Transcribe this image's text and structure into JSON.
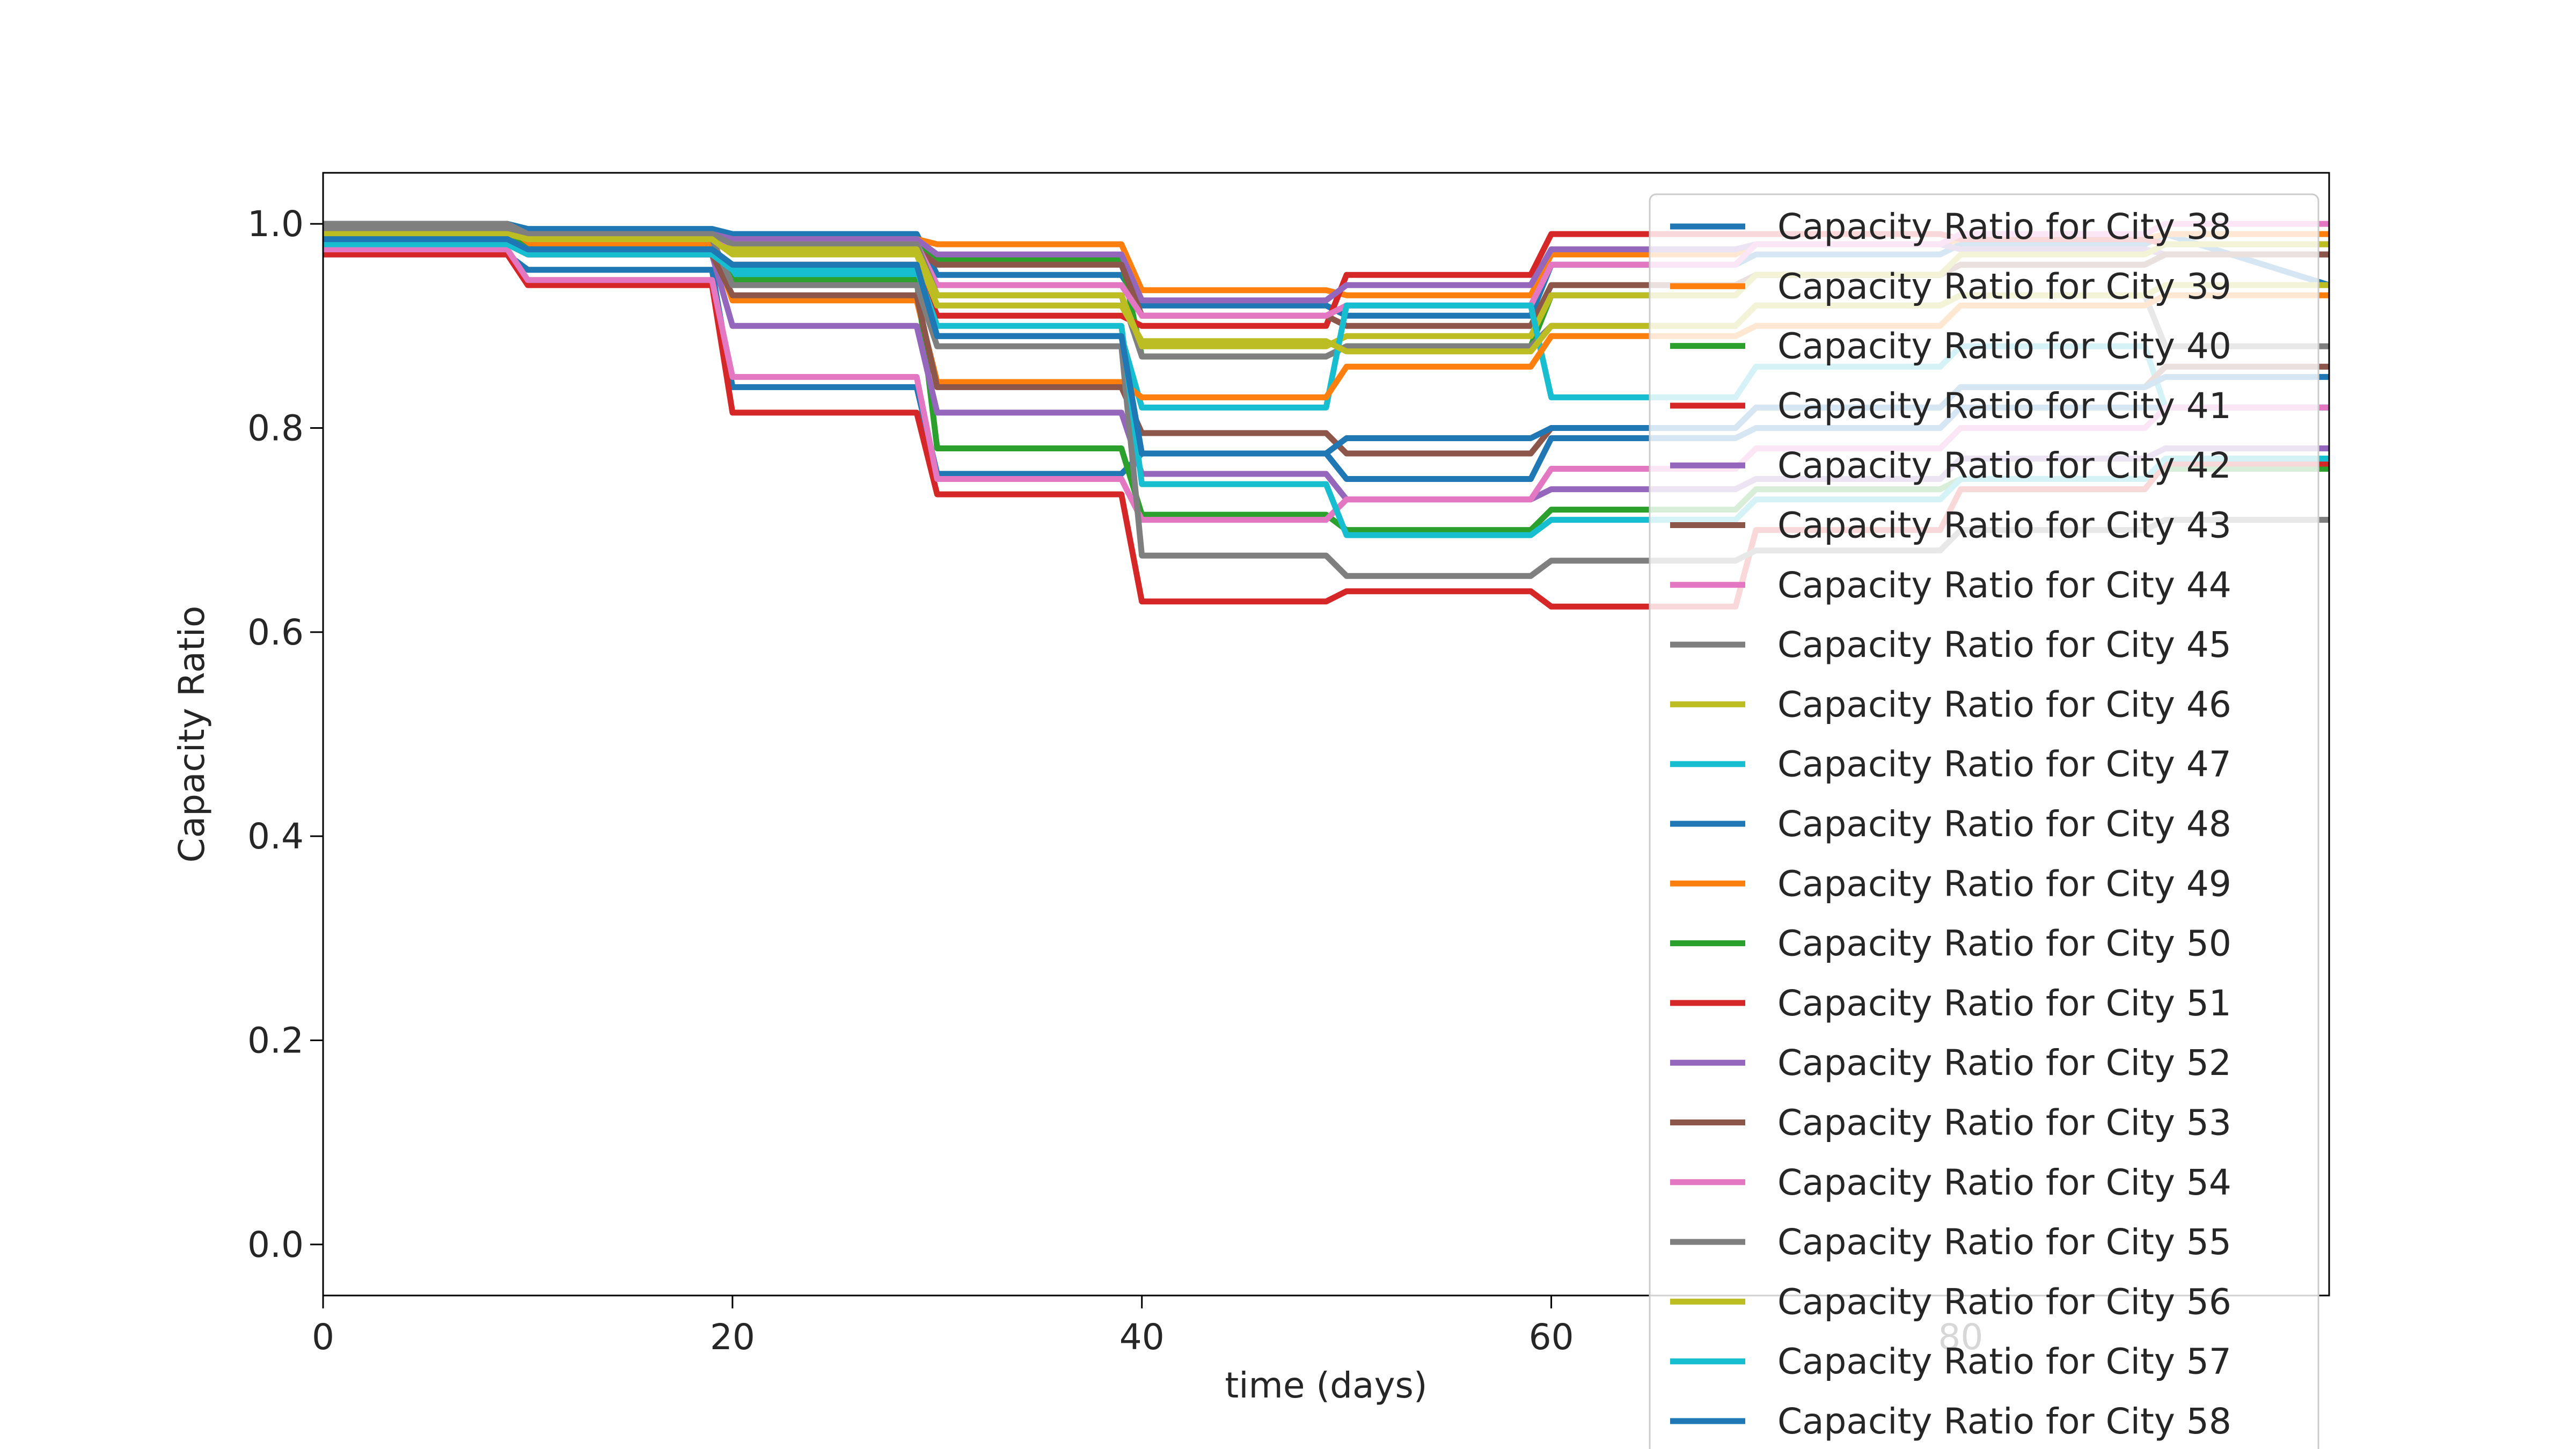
{
  "chart_data": {
    "type": "line",
    "title": "",
    "xlabel": "time (days)",
    "ylabel": "Capacity Ratio",
    "xlim": [
      0,
      98
    ],
    "ylim": [
      -0.05,
      1.05
    ],
    "x_ticks": [
      0,
      20,
      40,
      60,
      80
    ],
    "x_tick_labels": [
      "0",
      "20",
      "40",
      "60",
      "80"
    ],
    "y_ticks": [
      0.0,
      0.2,
      0.4,
      0.6,
      0.8,
      1.0
    ],
    "y_tick_labels": [
      "0.0",
      "0.2",
      "0.4",
      "0.6",
      "0.8",
      "1.0"
    ],
    "grid": false,
    "legend_position": "right",
    "step_times": [
      0,
      9,
      10,
      19,
      20,
      29,
      30,
      39,
      40,
      49,
      50,
      59,
      60,
      69,
      70,
      79,
      80,
      89,
      90,
      98
    ],
    "series": [
      {
        "name": "Capacity Ratio for City 38",
        "color": "#1f77b4",
        "values": [
          1.0,
          1.0,
          0.995,
          0.995,
          0.99,
          0.99,
          0.95,
          0.95,
          0.92,
          0.92,
          0.91,
          0.91,
          0.96,
          0.96,
          0.97,
          0.97,
          0.98,
          0.98,
          0.99,
          0.94
        ]
      },
      {
        "name": "Capacity Ratio for City 39",
        "color": "#ff7f0e",
        "values": [
          0.995,
          0.995,
          0.99,
          0.99,
          0.985,
          0.985,
          0.98,
          0.98,
          0.935,
          0.935,
          0.93,
          0.93,
          0.97,
          0.97,
          0.98,
          0.98,
          0.985,
          0.985,
          0.99,
          0.99
        ]
      },
      {
        "name": "Capacity Ratio for City 40",
        "color": "#2ca02c",
        "values": [
          0.99,
          0.99,
          0.985,
          0.985,
          0.98,
          0.98,
          0.965,
          0.965,
          0.87,
          0.87,
          0.88,
          0.88,
          0.93,
          0.93,
          0.95,
          0.95,
          0.96,
          0.96,
          0.97,
          0.97
        ]
      },
      {
        "name": "Capacity Ratio for City 41",
        "color": "#d62728",
        "values": [
          0.98,
          0.98,
          0.97,
          0.97,
          0.96,
          0.96,
          0.91,
          0.91,
          0.9,
          0.9,
          0.95,
          0.95,
          0.99,
          0.99,
          0.99,
          0.99,
          0.985,
          0.985,
          0.98,
          0.98
        ]
      },
      {
        "name": "Capacity Ratio for City 42",
        "color": "#9467bd",
        "values": [
          0.995,
          0.995,
          0.99,
          0.99,
          0.985,
          0.985,
          0.97,
          0.97,
          0.925,
          0.925,
          0.94,
          0.94,
          0.975,
          0.975,
          0.98,
          0.98,
          0.975,
          0.975,
          0.97,
          0.97
        ]
      },
      {
        "name": "Capacity Ratio for City 43",
        "color": "#8c564b",
        "values": [
          0.985,
          0.985,
          0.98,
          0.98,
          0.975,
          0.975,
          0.96,
          0.96,
          0.91,
          0.91,
          0.9,
          0.9,
          0.94,
          0.94,
          0.95,
          0.95,
          0.96,
          0.96,
          0.97,
          0.97
        ]
      },
      {
        "name": "Capacity Ratio for City 44",
        "color": "#e377c2",
        "values": [
          0.99,
          0.99,
          0.985,
          0.985,
          0.98,
          0.98,
          0.94,
          0.94,
          0.91,
          0.91,
          0.92,
          0.92,
          0.96,
          0.96,
          0.98,
          0.98,
          0.99,
          0.99,
          1.0,
          1.0
        ]
      },
      {
        "name": "Capacity Ratio for City 45",
        "color": "#7f7f7f",
        "values": [
          1.0,
          1.0,
          0.99,
          0.99,
          0.98,
          0.98,
          0.93,
          0.93,
          0.87,
          0.87,
          0.88,
          0.88,
          0.9,
          0.9,
          0.92,
          0.92,
          0.93,
          0.93,
          0.88,
          0.88
        ]
      },
      {
        "name": "Capacity Ratio for City 46",
        "color": "#bcbd22",
        "values": [
          0.985,
          0.985,
          0.98,
          0.98,
          0.975,
          0.975,
          0.93,
          0.93,
          0.88,
          0.88,
          0.89,
          0.89,
          0.93,
          0.93,
          0.95,
          0.95,
          0.97,
          0.97,
          0.98,
          0.98
        ]
      },
      {
        "name": "Capacity Ratio for City 47",
        "color": "#17becf",
        "values": [
          0.98,
          0.98,
          0.975,
          0.975,
          0.95,
          0.95,
          0.89,
          0.89,
          0.82,
          0.82,
          0.92,
          0.92,
          0.83,
          0.83,
          0.86,
          0.86,
          0.88,
          0.88,
          0.82,
          0.82
        ]
      },
      {
        "name": "Capacity Ratio for City 48",
        "color": "#1f77b4",
        "values": [
          0.97,
          0.97,
          0.955,
          0.955,
          0.84,
          0.84,
          0.755,
          0.755,
          0.775,
          0.775,
          0.75,
          0.75,
          0.79,
          0.79,
          0.8,
          0.8,
          0.82,
          0.82,
          0.82,
          0.82
        ]
      },
      {
        "name": "Capacity Ratio for City 49",
        "color": "#ff7f0e",
        "values": [
          0.99,
          0.99,
          0.98,
          0.98,
          0.925,
          0.925,
          0.845,
          0.845,
          0.83,
          0.83,
          0.86,
          0.86,
          0.89,
          0.89,
          0.9,
          0.9,
          0.92,
          0.92,
          0.93,
          0.93
        ]
      },
      {
        "name": "Capacity Ratio for City 50",
        "color": "#2ca02c",
        "values": [
          0.99,
          0.99,
          0.975,
          0.975,
          0.945,
          0.945,
          0.78,
          0.78,
          0.715,
          0.715,
          0.7,
          0.7,
          0.72,
          0.72,
          0.74,
          0.74,
          0.75,
          0.75,
          0.76,
          0.76
        ]
      },
      {
        "name": "Capacity Ratio for City 51",
        "color": "#d62728",
        "values": [
          0.97,
          0.97,
          0.94,
          0.94,
          0.815,
          0.815,
          0.735,
          0.735,
          0.63,
          0.63,
          0.64,
          0.64,
          0.625,
          0.625,
          0.7,
          0.7,
          0.74,
          0.74,
          0.765,
          0.765
        ]
      },
      {
        "name": "Capacity Ratio for City 52",
        "color": "#9467bd",
        "values": [
          0.98,
          0.98,
          0.97,
          0.97,
          0.9,
          0.9,
          0.815,
          0.815,
          0.755,
          0.755,
          0.73,
          0.73,
          0.74,
          0.74,
          0.75,
          0.75,
          0.77,
          0.77,
          0.78,
          0.78
        ]
      },
      {
        "name": "Capacity Ratio for City 53",
        "color": "#8c564b",
        "values": [
          0.985,
          0.985,
          0.97,
          0.97,
          0.93,
          0.93,
          0.84,
          0.84,
          0.795,
          0.795,
          0.775,
          0.775,
          0.8,
          0.8,
          0.82,
          0.82,
          0.84,
          0.84,
          0.86,
          0.86
        ]
      },
      {
        "name": "Capacity Ratio for City 54",
        "color": "#e377c2",
        "values": [
          0.975,
          0.975,
          0.945,
          0.945,
          0.85,
          0.85,
          0.75,
          0.75,
          0.71,
          0.71,
          0.73,
          0.73,
          0.76,
          0.76,
          0.78,
          0.78,
          0.8,
          0.8,
          0.82,
          0.82
        ]
      },
      {
        "name": "Capacity Ratio for City 55",
        "color": "#7f7f7f",
        "values": [
          0.995,
          0.995,
          0.985,
          0.985,
          0.94,
          0.94,
          0.88,
          0.88,
          0.675,
          0.675,
          0.655,
          0.655,
          0.67,
          0.67,
          0.68,
          0.68,
          0.7,
          0.7,
          0.71,
          0.71
        ]
      },
      {
        "name": "Capacity Ratio for City 56",
        "color": "#bcbd22",
        "values": [
          0.99,
          0.99,
          0.985,
          0.985,
          0.97,
          0.97,
          0.92,
          0.92,
          0.885,
          0.885,
          0.875,
          0.875,
          0.9,
          0.9,
          0.92,
          0.92,
          0.93,
          0.93,
          0.94,
          0.94
        ]
      },
      {
        "name": "Capacity Ratio for City 57",
        "color": "#17becf",
        "values": [
          0.98,
          0.98,
          0.97,
          0.97,
          0.955,
          0.955,
          0.9,
          0.9,
          0.745,
          0.745,
          0.695,
          0.695,
          0.71,
          0.71,
          0.73,
          0.73,
          0.75,
          0.75,
          0.77,
          0.77
        ]
      },
      {
        "name": "Capacity Ratio for City 58",
        "color": "#1f77b4",
        "values": [
          0.985,
          0.985,
          0.975,
          0.975,
          0.96,
          0.96,
          0.89,
          0.89,
          0.775,
          0.775,
          0.79,
          0.79,
          0.8,
          0.8,
          0.82,
          0.82,
          0.84,
          0.84,
          0.85,
          0.85
        ]
      }
    ]
  }
}
